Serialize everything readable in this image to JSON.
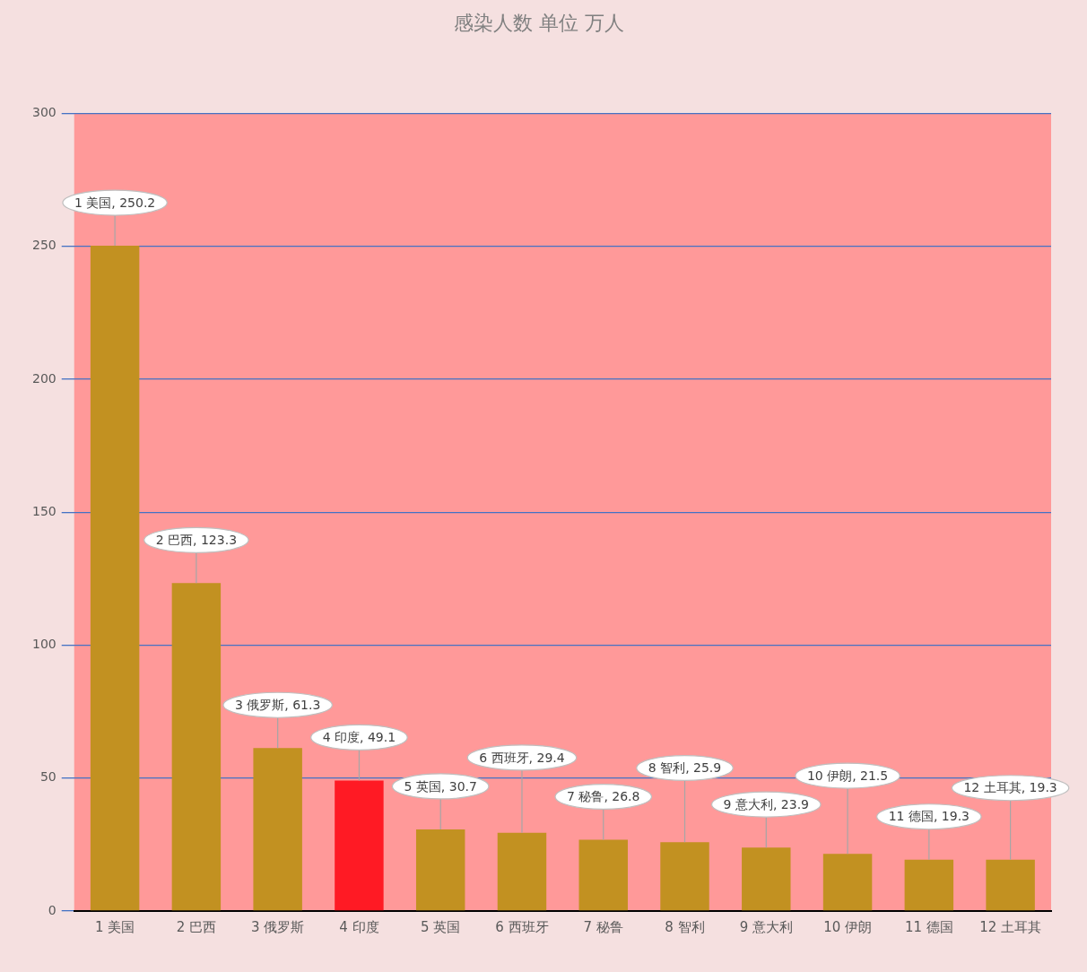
{
  "chart_data": {
    "type": "bar",
    "title": "感染人数 单位 万人",
    "categories": [
      "1 美国",
      "2 巴西",
      "3 俄罗斯",
      "4 印度",
      "5 英国",
      "6 西班牙",
      "7 秘鲁",
      "8 智利",
      "9 意大利",
      "10 伊朗",
      "11 德国",
      "12 土耳其"
    ],
    "values": [
      250.2,
      123.3,
      61.3,
      49.1,
      30.7,
      29.4,
      26.8,
      25.9,
      23.9,
      21.5,
      19.3,
      19.3
    ],
    "colors": [
      "#c29121",
      "#c29121",
      "#c29121",
      "#ff1a24",
      "#c29121",
      "#c29121",
      "#c29121",
      "#c29121",
      "#c29121",
      "#c29121",
      "#c29121",
      "#c29121"
    ],
    "value_labels": [
      "1 美国, 250.2",
      "2 巴西, 123.3",
      "3 俄罗斯, 61.3",
      "4 印度, 49.1",
      "5 英国, 30.7",
      "6 西班牙, 29.4",
      "7 秘鲁, 26.8",
      "8 智利, 25.9",
      "9 意大利, 23.9",
      "10 伊朗, 21.5",
      "11 德国, 19.3",
      "12 土耳其, 19.3"
    ],
    "ylim": [
      0,
      300
    ],
    "yticks": [
      0,
      50,
      100,
      150,
      200,
      250,
      300
    ],
    "grid": "y"
  }
}
